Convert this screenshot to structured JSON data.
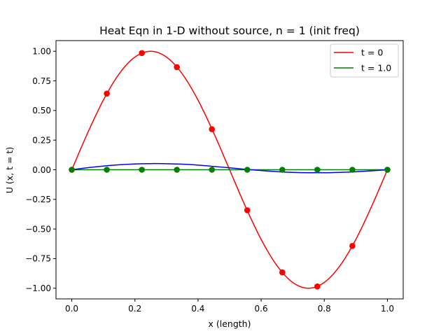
{
  "chart_data": {
    "type": "line",
    "title": "Heat Eqn in 1-D without source, n = 1 (init freq)",
    "xlabel": "x (length)",
    "ylabel": "U (x, t = t)",
    "xlim": [
      -0.05,
      1.05
    ],
    "ylim": [
      -1.09,
      1.09
    ],
    "xticks": [
      0.0,
      0.2,
      0.4,
      0.6,
      0.8,
      1.0
    ],
    "xtick_labels": [
      "0.0",
      "0.2",
      "0.4",
      "0.6",
      "0.8",
      "1.0"
    ],
    "yticks": [
      1.0,
      0.75,
      0.5,
      0.25,
      0.0,
      -0.25,
      -0.5,
      -0.75,
      -1.0
    ],
    "ytick_labels": [
      "1.00",
      "0.75",
      "0.50",
      "0.25",
      "0.00",
      "−0.25",
      "−0.50",
      "−0.75",
      "−1.00"
    ],
    "grid": false,
    "legend_position": "top-right",
    "series": [
      {
        "name": "t = 0",
        "color": "#ff0000",
        "x": [
          0.0,
          0.05,
          0.1,
          0.15,
          0.2,
          0.25,
          0.3,
          0.35,
          0.4,
          0.45,
          0.5,
          0.55,
          0.6,
          0.65,
          0.7,
          0.75,
          0.8,
          0.85,
          0.9,
          0.95,
          1.0
        ],
        "y": [
          0.0,
          0.309,
          0.588,
          0.809,
          0.951,
          1.0,
          0.951,
          0.809,
          0.588,
          0.309,
          0.0,
          -0.309,
          -0.588,
          -0.809,
          -0.951,
          -1.0,
          -0.951,
          -0.809,
          -0.588,
          -0.309,
          0.0
        ],
        "markers": {
          "x": [
            0.0,
            0.111,
            0.222,
            0.333,
            0.444,
            0.556,
            0.667,
            0.778,
            0.889,
            1.0
          ],
          "y": [
            0.0,
            0.643,
            0.985,
            0.866,
            0.342,
            -0.342,
            -0.866,
            -0.985,
            -0.643,
            0.0
          ]
        }
      },
      {
        "name": "t = 1.0",
        "color": "#008000",
        "x": [
          0.0,
          1.0
        ],
        "y": [
          0.0,
          0.0
        ],
        "markers": {
          "x": [
            0.0,
            0.111,
            0.222,
            0.333,
            0.444,
            0.556,
            0.667,
            0.778,
            0.889,
            1.0
          ],
          "y": [
            0.0,
            0.0,
            0.0,
            0.0,
            0.0,
            0.0,
            0.0,
            0.0,
            0.0,
            0.0
          ]
        }
      },
      {
        "color": "#0000ff",
        "x": [
          0.0,
          0.05,
          0.1,
          0.15,
          0.2,
          0.25,
          0.3,
          0.35,
          0.4,
          0.45,
          0.5,
          0.55,
          0.6,
          0.65,
          0.7,
          0.75,
          0.8,
          0.85,
          0.9,
          0.95,
          1.0
        ],
        "y": [
          0.0,
          0.017,
          0.031,
          0.042,
          0.049,
          0.052,
          0.051,
          0.047,
          0.039,
          0.028,
          0.016,
          0.004,
          -0.007,
          -0.016,
          -0.022,
          -0.025,
          -0.025,
          -0.022,
          -0.017,
          -0.009,
          0.0
        ]
      }
    ]
  }
}
